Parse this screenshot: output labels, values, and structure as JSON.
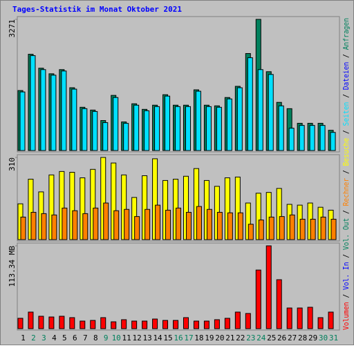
{
  "chart_data": {
    "type": "bar",
    "title": "Tages-Statistik im Monat Oktober 2021",
    "categories": [
      "1",
      "2",
      "3",
      "4",
      "5",
      "6",
      "7",
      "8",
      "9",
      "10",
      "11",
      "12",
      "13",
      "14",
      "15",
      "16",
      "17",
      "18",
      "19",
      "20",
      "21",
      "22",
      "23",
      "24",
      "25",
      "26",
      "27",
      "28",
      "29",
      "30",
      "31"
    ],
    "category_colors": [
      "#000000",
      "#00805c",
      "#00805c",
      "#000000",
      "#000000",
      "#000000",
      "#000000",
      "#000000",
      "#00805c",
      "#00805c",
      "#000000",
      "#000000",
      "#000000",
      "#000000",
      "#000000",
      "#00805c",
      "#00805c",
      "#000000",
      "#000000",
      "#000000",
      "#000000",
      "#000000",
      "#00805c",
      "#00805c",
      "#000000",
      "#000000",
      "#000000",
      "#000000",
      "#000000",
      "#00805c",
      "#00805c"
    ],
    "panels": [
      {
        "ylim": [
          0,
          3271
        ],
        "yticks": [
          3271
        ],
        "series": [
          {
            "color": "#00805c",
            "values": [
              1496,
              2401,
              2053,
              1914,
              2018,
              1566,
              1079,
              1009,
              748,
              1375,
              713,
              1166,
              1027,
              1131,
              1392,
              1131,
              1131,
              1514,
              1131,
              1114,
              1322,
              1601,
              2419,
              3271,
              1966,
              1201,
              1044,
              679,
              679,
              679,
              505
            ]
          },
          {
            "color": "#00e0ff",
            "values": [
              1461,
              2366,
              2018,
              1879,
              1983,
              1531,
              1044,
              974,
              696,
              1322,
              678,
              1131,
              992,
              1096,
              1357,
              1096,
              1096,
              1479,
              1096,
              1079,
              1287,
              1566,
              2314,
              2018,
              1897,
              1114,
              557,
              626,
              626,
              626,
              452
            ]
          }
        ]
      },
      {
        "ylim": [
          0,
          310
        ],
        "yticks": [
          310
        ],
        "series": [
          {
            "color": "#ffff00",
            "values": [
              135,
              228,
              180,
              244,
              257,
              254,
              233,
              265,
              310,
              289,
              244,
              159,
              241,
              305,
              223,
              228,
              239,
              268,
              223,
              201,
              233,
              236,
              138,
              175,
              178,
              193,
              133,
              130,
              138,
              122,
              111
            ]
          },
          {
            "color": "#ff8000",
            "values": [
              85,
              103,
              98,
              93,
              119,
              109,
              98,
              119,
              138,
              109,
              114,
              87,
              114,
              130,
              111,
              119,
              103,
              125,
              114,
              103,
              101,
              101,
              58,
              74,
              85,
              87,
              93,
              77,
              77,
              85,
              77
            ]
          }
        ]
      },
      {
        "ylim": [
          0,
          113.34
        ],
        "yticks": [
          {
            "value": 113.34,
            "label": "113.34 MB"
          }
        ],
        "series": [
          {
            "color": "#ff0000",
            "values": [
              14.2,
              22.7,
              17.0,
              16.0,
              17.0,
              15.1,
              10.4,
              11.3,
              15.1,
              9.4,
              12.3,
              10.4,
              10.4,
              13.2,
              11.3,
              11.3,
              15.1,
              10.4,
              10.4,
              12.3,
              14.2,
              22.7,
              20.8,
              80.2,
              113.34,
              67.0,
              28.3,
              28.3,
              29.3,
              15.1,
              22.7
            ]
          }
        ]
      }
    ],
    "legend_separator": " / ",
    "legend": [
      {
        "name": "Volumen",
        "color": "#ff0000"
      },
      {
        "name": "Vol. In",
        "color": "#0000ff"
      },
      {
        "name": "Vol. Out",
        "color": "#00805c"
      },
      {
        "name": "Rechner",
        "color": "#ff8000"
      },
      {
        "name": "Besuche",
        "color": "#ffff00"
      },
      {
        "name": "Seiten",
        "color": "#00e0ff"
      },
      {
        "name": "Dateien",
        "color": "#0000ff"
      },
      {
        "name": "Anfragen",
        "color": "#00805c"
      }
    ]
  }
}
